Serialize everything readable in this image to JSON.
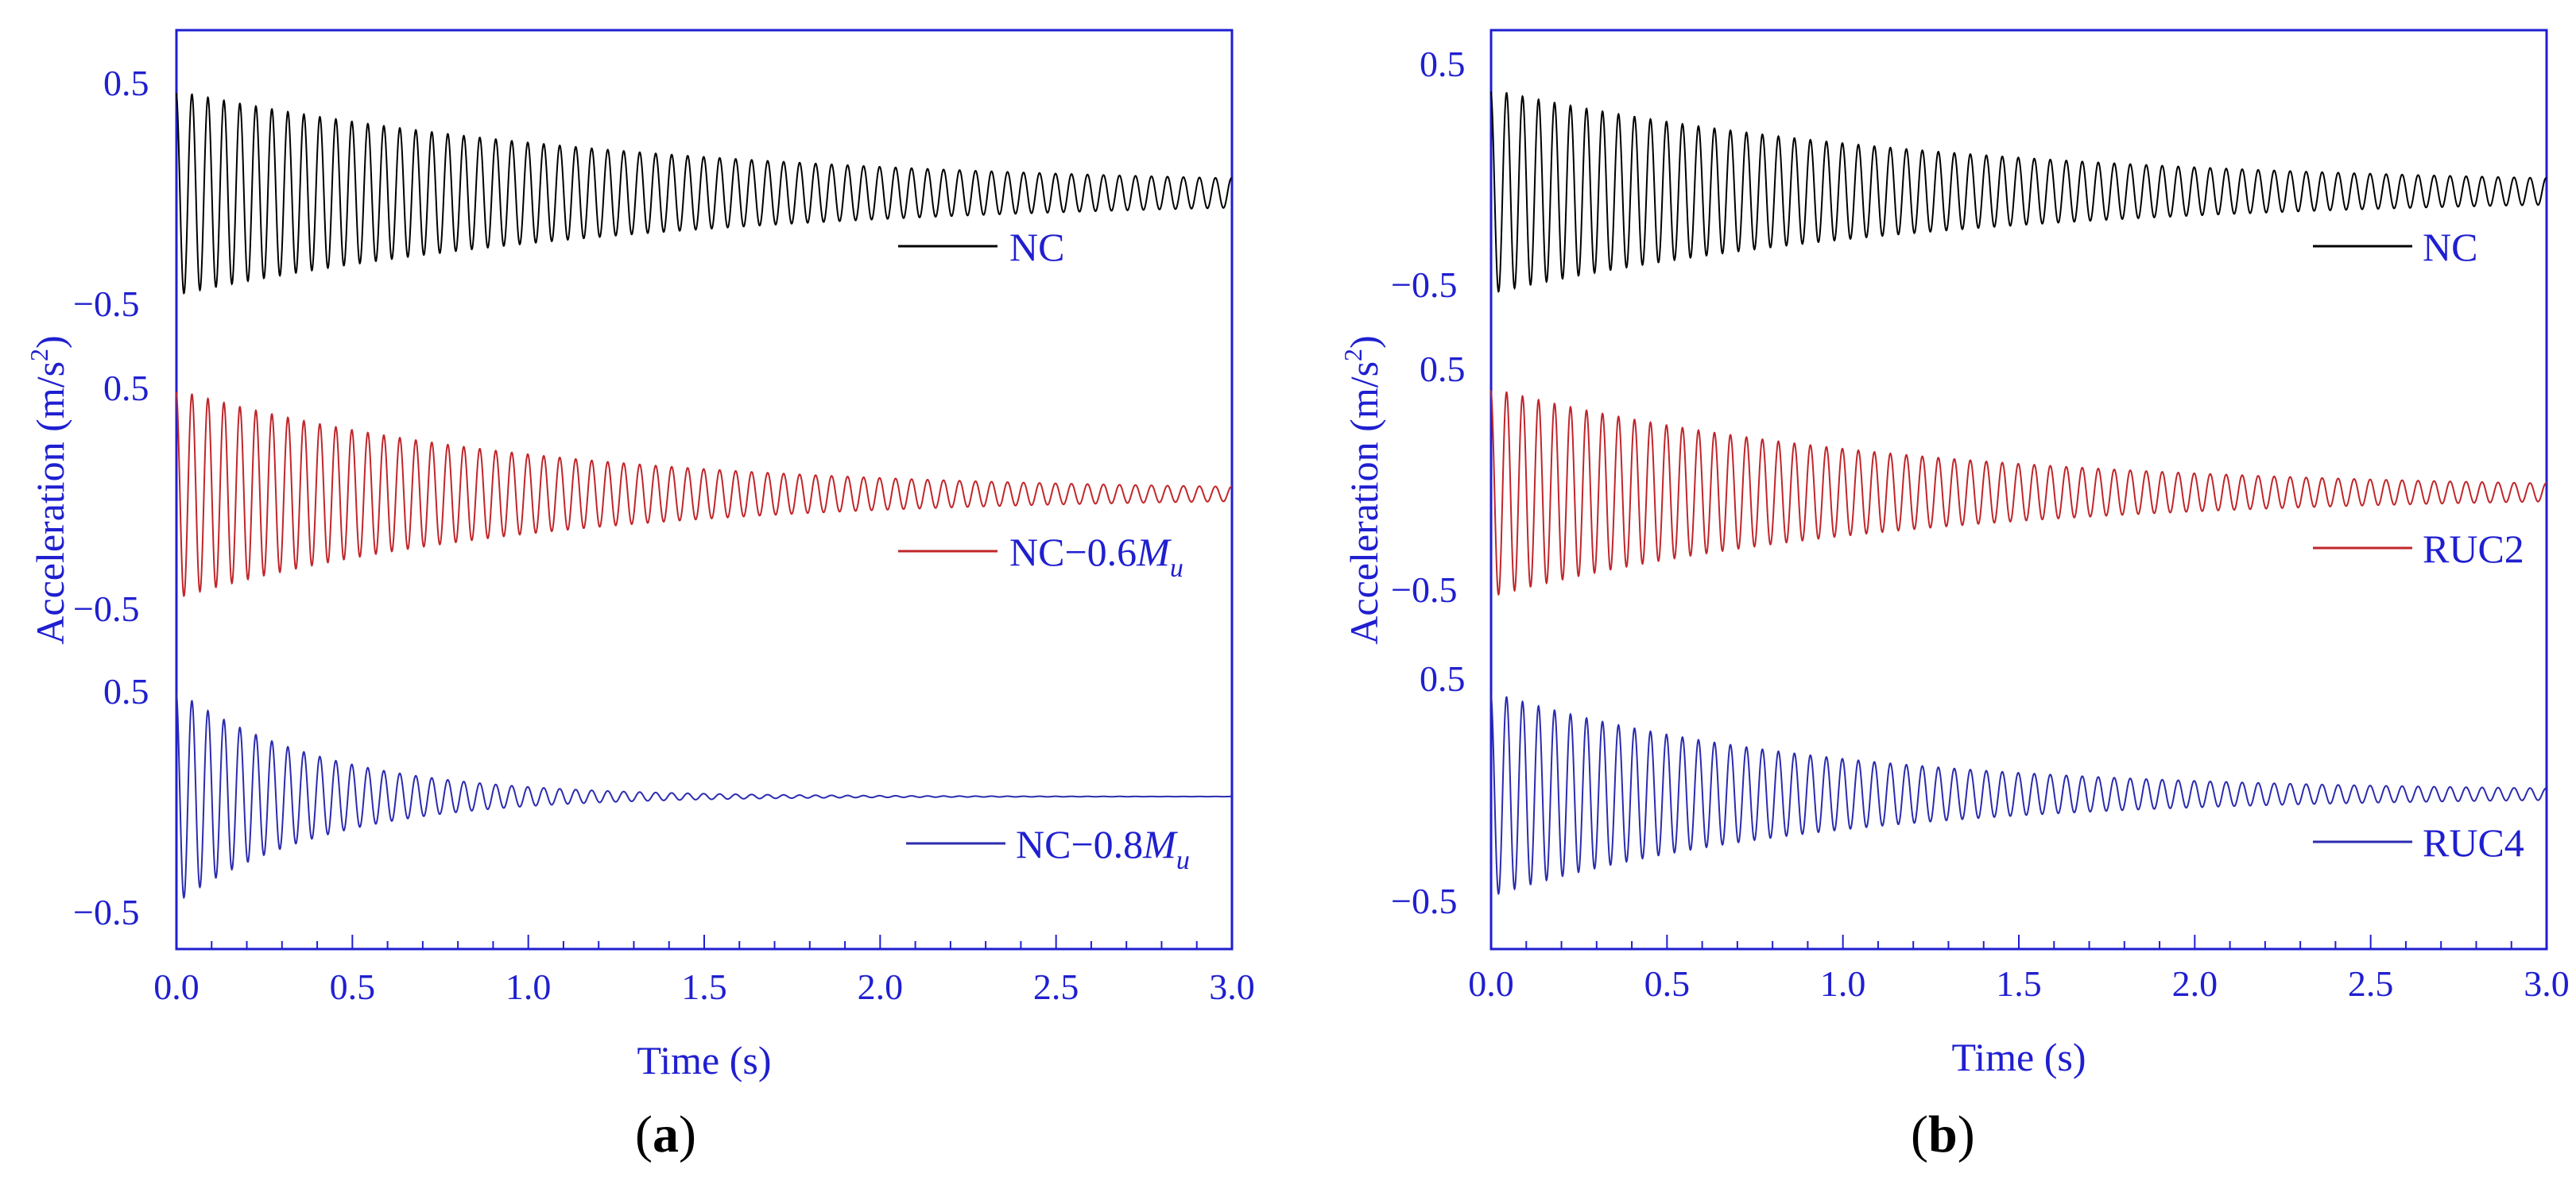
{
  "chart_data": [
    {
      "panel": "a",
      "type": "line",
      "panel_label": "a",
      "xlabel": "Time (s)",
      "ylabel": "Acceleration (m/s",
      "ylabel_sup": "2",
      "ylabel_close": ")",
      "xlim": [
        0,
        3
      ],
      "xticks": [
        "0.0",
        "0.5",
        "1.0",
        "1.5",
        "2.0",
        "2.5",
        "3.0"
      ],
      "ytick_top": "0.5",
      "ytick_bottom": "−0.5",
      "series": [
        {
          "name": "NC",
          "legend_prefix": "NC",
          "legend_italic": "",
          "legend_sub": "",
          "color": "#000000",
          "amplitude": 0.43,
          "decay_rate": 0.75,
          "frequency": 22,
          "residual": 0.02
        },
        {
          "name": "NC−0.6Mu",
          "legend_prefix": "NC−0.6",
          "legend_italic": "M",
          "legend_sub": "u",
          "color": "#c0262b",
          "amplitude": 0.45,
          "decay_rate": 1.0,
          "frequency": 22,
          "residual": 0.01
        },
        {
          "name": "NC−0.8Mu",
          "legend_prefix": "NC−0.8",
          "legend_italic": "M",
          "legend_sub": "u",
          "color": "#2b2bb0",
          "amplitude": 0.47,
          "decay_rate": 2.4,
          "frequency": 22,
          "residual": 0.0
        }
      ]
    },
    {
      "panel": "b",
      "type": "line",
      "panel_label": "b",
      "xlabel": "Time (s)",
      "ylabel": "Acceleration (m/s",
      "ylabel_sup": "2",
      "ylabel_close": ")",
      "xlim": [
        0,
        3
      ],
      "xticks": [
        "0.0",
        "0.5",
        "1.0",
        "1.5",
        "2.0",
        "2.5",
        "3.0"
      ],
      "ytick_top": "0.5",
      "ytick_bottom": "−0.5",
      "series": [
        {
          "name": "NC",
          "legend_prefix": "NC",
          "legend_italic": "",
          "legend_sub": "",
          "color": "#000000",
          "amplitude": 0.43,
          "decay_rate": 0.8,
          "frequency": 22,
          "residual": 0.02
        },
        {
          "name": "RUC2",
          "legend_prefix": "RUC2",
          "legend_italic": "",
          "legend_sub": "",
          "color": "#c0262b",
          "amplitude": 0.45,
          "decay_rate": 0.9,
          "frequency": 22,
          "residual": 0.01
        },
        {
          "name": "RUC4",
          "legend_prefix": "RUC4",
          "legend_italic": "",
          "legend_sub": "",
          "color": "#2b2bb0",
          "amplitude": 0.44,
          "decay_rate": 1.1,
          "frequency": 22,
          "residual": 0.01
        }
      ]
    }
  ],
  "colors": {
    "axis": "#1f1fd0",
    "text": "#1f1fd0"
  }
}
